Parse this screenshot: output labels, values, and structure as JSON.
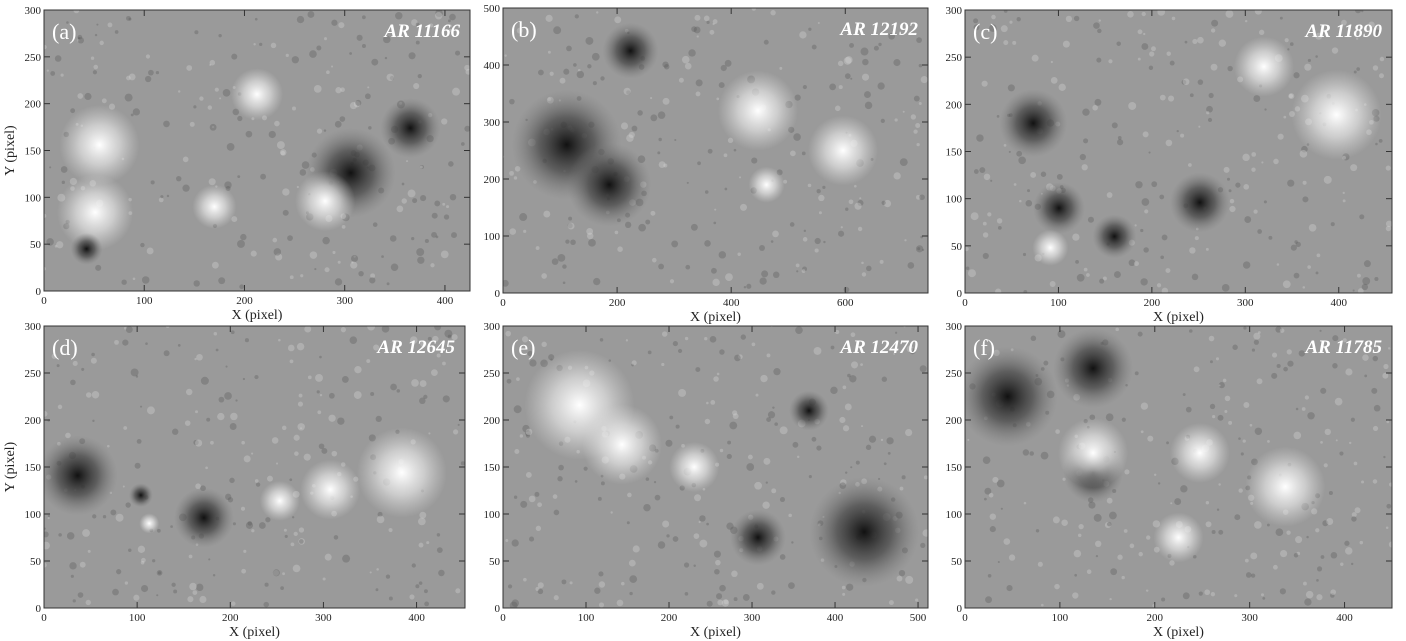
{
  "panels": [
    {
      "label": "(a)",
      "title": "AR 11166",
      "x_label": "X (pixel)",
      "y_label": "Y (pixel)",
      "xlim": [
        0,
        425
      ],
      "ylim": [
        0,
        300
      ],
      "xticks": [
        0,
        100,
        200,
        300,
        400
      ],
      "yticks": [
        0,
        50,
        100,
        150,
        200,
        250,
        300
      ]
    },
    {
      "label": "(b)",
      "title": "AR 12192",
      "x_label": "X (pixel)",
      "xlim": [
        0,
        745
      ],
      "ylim": [
        0,
        500
      ],
      "xticks": [
        0,
        200,
        400,
        600
      ],
      "yticks": [
        0,
        100,
        200,
        300,
        400,
        500
      ]
    },
    {
      "label": "(c)",
      "title": "AR 11890",
      "x_label": "X (pixel)",
      "xlim": [
        0,
        457
      ],
      "ylim": [
        0,
        300
      ],
      "xticks": [
        0,
        100,
        200,
        300,
        400
      ],
      "yticks": [
        0,
        50,
        100,
        150,
        200,
        250,
        300
      ]
    },
    {
      "label": "(d)",
      "title": "AR 12645",
      "x_label": "X (pixel)",
      "y_label": "Y (pixel)",
      "xlim": [
        0,
        452
      ],
      "ylim": [
        0,
        300
      ],
      "xticks": [
        0,
        100,
        200,
        300,
        400
      ],
      "yticks": [
        0,
        50,
        100,
        150,
        200,
        250,
        300
      ]
    },
    {
      "label": "(e)",
      "title": "AR 12470",
      "x_label": "X (pixel)",
      "xlim": [
        0,
        512
      ],
      "ylim": [
        0,
        300
      ],
      "xticks": [
        0,
        100,
        200,
        300,
        400,
        500
      ],
      "yticks": [
        0,
        50,
        100,
        150,
        200,
        250,
        300
      ]
    },
    {
      "label": "(f)",
      "title": "AR 11785",
      "x_label": "X (pixel)",
      "xlim": [
        0,
        450
      ],
      "ylim": [
        0,
        300
      ],
      "xticks": [
        0,
        100,
        200,
        300,
        400
      ],
      "yticks": [
        0,
        50,
        100,
        150,
        200,
        250,
        300
      ]
    }
  ]
}
